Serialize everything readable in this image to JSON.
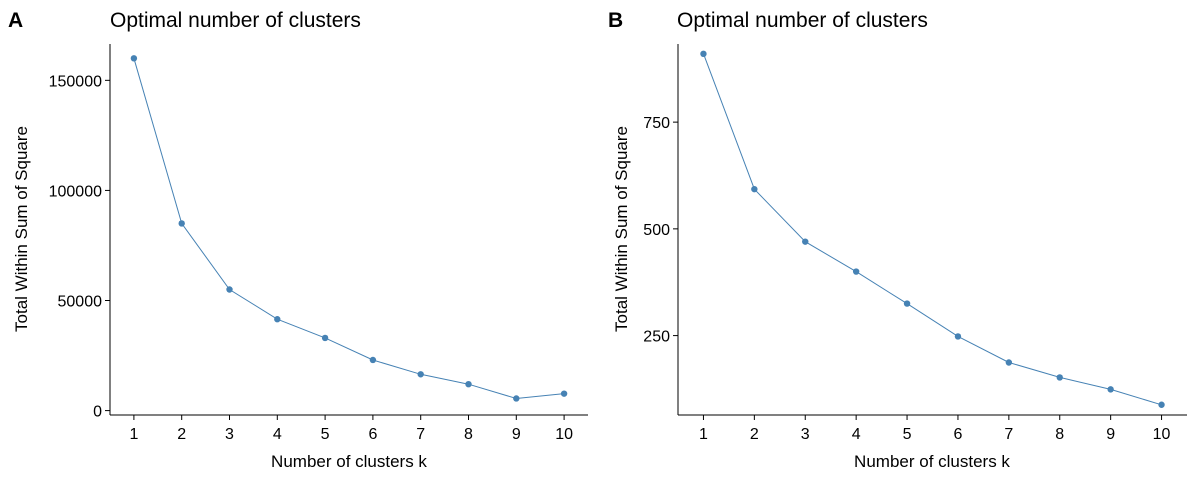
{
  "series_color": "#4682B4",
  "chart_data": [
    {
      "type": "line",
      "panel_label": "A",
      "title": "Optimal number of clusters",
      "xlabel": "Number of clusters k",
      "ylabel": "Total Within Sum of Square",
      "x": [
        1,
        2,
        3,
        4,
        5,
        6,
        7,
        8,
        9,
        10
      ],
      "values": [
        160000,
        85000,
        55000,
        41500,
        33000,
        23000,
        16500,
        12000,
        5500,
        7700
      ],
      "xlim": [
        0.5,
        10.5
      ],
      "ylim": [
        -2000,
        166500
      ],
      "xticks": [
        1,
        2,
        3,
        4,
        5,
        6,
        7,
        8,
        9,
        10
      ],
      "yticks": [
        0,
        50000,
        100000,
        150000
      ],
      "grid": false,
      "legend": "none"
    },
    {
      "type": "line",
      "panel_label": "B",
      "title": "Optimal number of clusters",
      "xlabel": "Number of clusters k",
      "ylabel": "Total Within Sum of Square",
      "x": [
        1,
        2,
        3,
        4,
        5,
        6,
        7,
        8,
        9,
        10
      ],
      "values": [
        910,
        593,
        470,
        400,
        325,
        248,
        187,
        152,
        124,
        88
      ],
      "xlim": [
        0.5,
        10.5
      ],
      "ylim": [
        64,
        933
      ],
      "xticks": [
        1,
        2,
        3,
        4,
        5,
        6,
        7,
        8,
        9,
        10
      ],
      "yticks": [
        250,
        500,
        750
      ],
      "grid": false,
      "legend": "none"
    }
  ]
}
